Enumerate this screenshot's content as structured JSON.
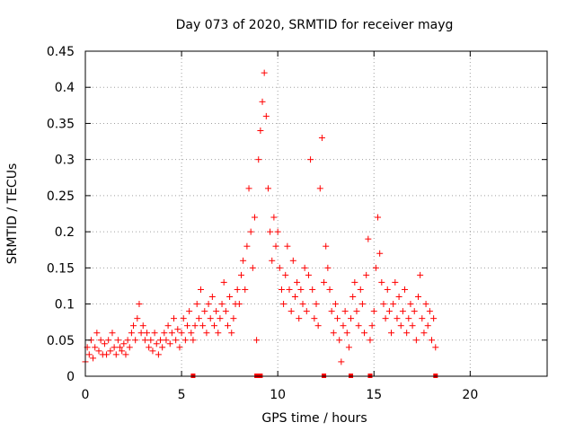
{
  "chart_data": {
    "type": "scatter",
    "title": "Day 073 of 2020, SRMTID for receiver mayg",
    "xlabel": "GPS time / hours",
    "ylabel": "SRMTID / TECUs",
    "xlim": [
      0,
      24
    ],
    "ylim": [
      0,
      0.45
    ],
    "xticks": [
      0,
      5,
      10,
      15,
      20
    ],
    "xtick_labels": [
      "0",
      "5",
      "10",
      "15",
      "20"
    ],
    "yticks": [
      0,
      0.05,
      0.1,
      0.15,
      0.2,
      0.25,
      0.3,
      0.35,
      0.4,
      0.45
    ],
    "ytick_labels": [
      "0",
      "0.05",
      "0.1",
      "0.15",
      "0.2",
      "0.25",
      "0.3",
      "0.35",
      "0.4",
      "0.45"
    ],
    "grid": true,
    "marker": "+",
    "color": "#ff0000",
    "series": [
      {
        "name": "SRMTID",
        "points": [
          [
            0.0,
            0.02
          ],
          [
            0.1,
            0.04
          ],
          [
            0.2,
            0.03
          ],
          [
            0.3,
            0.05
          ],
          [
            0.4,
            0.025
          ],
          [
            0.5,
            0.04
          ],
          [
            0.6,
            0.06
          ],
          [
            0.7,
            0.035
          ],
          [
            0.8,
            0.05
          ],
          [
            0.9,
            0.03
          ],
          [
            1.0,
            0.045
          ],
          [
            1.1,
            0.03
          ],
          [
            1.2,
            0.05
          ],
          [
            1.3,
            0.035
          ],
          [
            1.4,
            0.06
          ],
          [
            1.5,
            0.04
          ],
          [
            1.6,
            0.03
          ],
          [
            1.7,
            0.05
          ],
          [
            1.8,
            0.04
          ],
          [
            1.9,
            0.035
          ],
          [
            2.0,
            0.045
          ],
          [
            2.1,
            0.03
          ],
          [
            2.2,
            0.05
          ],
          [
            2.3,
            0.04
          ],
          [
            2.4,
            0.06
          ],
          [
            2.5,
            0.07
          ],
          [
            2.6,
            0.05
          ],
          [
            2.7,
            0.08
          ],
          [
            2.8,
            0.1
          ],
          [
            2.9,
            0.06
          ],
          [
            3.0,
            0.07
          ],
          [
            3.1,
            0.05
          ],
          [
            3.2,
            0.06
          ],
          [
            3.3,
            0.04
          ],
          [
            3.4,
            0.05
          ],
          [
            3.5,
            0.035
          ],
          [
            3.6,
            0.06
          ],
          [
            3.7,
            0.045
          ],
          [
            3.8,
            0.03
          ],
          [
            3.9,
            0.05
          ],
          [
            4.0,
            0.04
          ],
          [
            4.1,
            0.06
          ],
          [
            4.2,
            0.05
          ],
          [
            4.3,
            0.07
          ],
          [
            4.4,
            0.045
          ],
          [
            4.5,
            0.06
          ],
          [
            4.6,
            0.08
          ],
          [
            4.7,
            0.05
          ],
          [
            4.8,
            0.065
          ],
          [
            4.9,
            0.04
          ],
          [
            5.0,
            0.06
          ],
          [
            5.1,
            0.08
          ],
          [
            5.2,
            0.05
          ],
          [
            5.3,
            0.07
          ],
          [
            5.4,
            0.09
          ],
          [
            5.5,
            0.06
          ],
          [
            5.6,
            0.05
          ],
          [
            5.7,
            0.07
          ],
          [
            5.8,
            0.1
          ],
          [
            5.9,
            0.08
          ],
          [
            6.0,
            0.12
          ],
          [
            6.1,
            0.07
          ],
          [
            6.2,
            0.09
          ],
          [
            6.3,
            0.06
          ],
          [
            6.4,
            0.1
          ],
          [
            6.5,
            0.08
          ],
          [
            6.6,
            0.11
          ],
          [
            6.7,
            0.07
          ],
          [
            6.8,
            0.09
          ],
          [
            6.9,
            0.06
          ],
          [
            7.0,
            0.08
          ],
          [
            7.1,
            0.1
          ],
          [
            7.2,
            0.13
          ],
          [
            7.3,
            0.09
          ],
          [
            7.4,
            0.07
          ],
          [
            7.5,
            0.11
          ],
          [
            7.6,
            0.06
          ],
          [
            7.7,
            0.08
          ],
          [
            7.8,
            0.1
          ],
          [
            7.9,
            0.12
          ],
          [
            8.0,
            0.1
          ],
          [
            8.1,
            0.14
          ],
          [
            8.2,
            0.16
          ],
          [
            8.3,
            0.12
          ],
          [
            8.4,
            0.18
          ],
          [
            8.5,
            0.26
          ],
          [
            8.6,
            0.2
          ],
          [
            8.7,
            0.15
          ],
          [
            8.8,
            0.22
          ],
          [
            8.9,
            0.05
          ],
          [
            9.0,
            0.3
          ],
          [
            9.1,
            0.34
          ],
          [
            9.2,
            0.38
          ],
          [
            9.3,
            0.42
          ],
          [
            9.4,
            0.36
          ],
          [
            9.5,
            0.26
          ],
          [
            9.6,
            0.2
          ],
          [
            9.7,
            0.16
          ],
          [
            9.8,
            0.22
          ],
          [
            9.9,
            0.18
          ],
          [
            10.0,
            0.2
          ],
          [
            10.1,
            0.15
          ],
          [
            10.2,
            0.12
          ],
          [
            10.3,
            0.1
          ],
          [
            10.4,
            0.14
          ],
          [
            10.5,
            0.18
          ],
          [
            10.6,
            0.12
          ],
          [
            10.7,
            0.09
          ],
          [
            10.8,
            0.16
          ],
          [
            10.9,
            0.11
          ],
          [
            11.0,
            0.13
          ],
          [
            11.1,
            0.08
          ],
          [
            11.2,
            0.12
          ],
          [
            11.3,
            0.1
          ],
          [
            11.4,
            0.15
          ],
          [
            11.5,
            0.09
          ],
          [
            11.6,
            0.14
          ],
          [
            11.7,
            0.3
          ],
          [
            11.8,
            0.12
          ],
          [
            11.9,
            0.08
          ],
          [
            12.0,
            0.1
          ],
          [
            12.1,
            0.07
          ],
          [
            12.2,
            0.26
          ],
          [
            12.3,
            0.33
          ],
          [
            12.4,
            0.13
          ],
          [
            12.5,
            0.18
          ],
          [
            12.6,
            0.15
          ],
          [
            12.7,
            0.12
          ],
          [
            12.8,
            0.09
          ],
          [
            12.9,
            0.06
          ],
          [
            13.0,
            0.1
          ],
          [
            13.1,
            0.08
          ],
          [
            13.2,
            0.05
          ],
          [
            13.3,
            0.02
          ],
          [
            13.4,
            0.07
          ],
          [
            13.5,
            0.09
          ],
          [
            13.6,
            0.06
          ],
          [
            13.7,
            0.04
          ],
          [
            13.8,
            0.08
          ],
          [
            13.9,
            0.11
          ],
          [
            14.0,
            0.13
          ],
          [
            14.1,
            0.09
          ],
          [
            14.2,
            0.07
          ],
          [
            14.3,
            0.12
          ],
          [
            14.4,
            0.1
          ],
          [
            14.5,
            0.06
          ],
          [
            14.6,
            0.14
          ],
          [
            14.7,
            0.19
          ],
          [
            14.8,
            0.05
          ],
          [
            14.9,
            0.07
          ],
          [
            15.0,
            0.09
          ],
          [
            15.1,
            0.15
          ],
          [
            15.2,
            0.22
          ],
          [
            15.3,
            0.17
          ],
          [
            15.4,
            0.13
          ],
          [
            15.5,
            0.1
          ],
          [
            15.6,
            0.08
          ],
          [
            15.7,
            0.12
          ],
          [
            15.8,
            0.09
          ],
          [
            15.9,
            0.06
          ],
          [
            16.0,
            0.1
          ],
          [
            16.1,
            0.13
          ],
          [
            16.2,
            0.08
          ],
          [
            16.3,
            0.11
          ],
          [
            16.4,
            0.07
          ],
          [
            16.5,
            0.09
          ],
          [
            16.6,
            0.12
          ],
          [
            16.7,
            0.06
          ],
          [
            16.8,
            0.08
          ],
          [
            16.9,
            0.1
          ],
          [
            17.0,
            0.07
          ],
          [
            17.1,
            0.09
          ],
          [
            17.2,
            0.05
          ],
          [
            17.3,
            0.11
          ],
          [
            17.4,
            0.14
          ],
          [
            17.5,
            0.08
          ],
          [
            17.6,
            0.06
          ],
          [
            17.7,
            0.1
          ],
          [
            17.8,
            0.07
          ],
          [
            17.9,
            0.09
          ],
          [
            18.0,
            0.05
          ],
          [
            18.1,
            0.08
          ],
          [
            18.2,
            0.04
          ]
        ]
      }
    ],
    "baseline_markers_x": [
      5.6,
      8.9,
      9.1,
      12.4,
      13.8,
      14.8,
      18.2
    ]
  }
}
